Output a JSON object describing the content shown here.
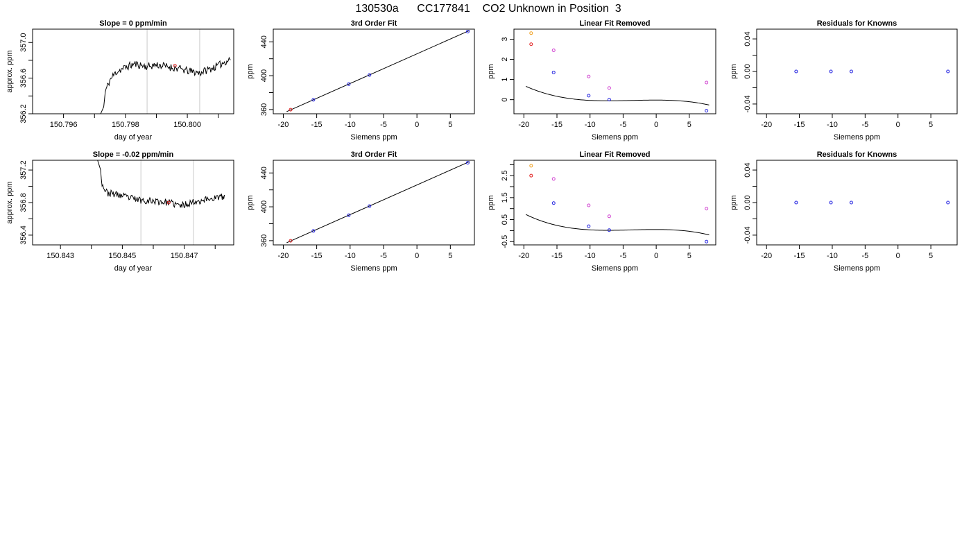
{
  "figure": {
    "title": "130530a      CC177841    CO2 Unknown in Position  3"
  },
  "chart_data": [
    {
      "id": "r1-time",
      "type": "line",
      "title": "Slope =  0  ppm/min",
      "xlabel": "day of year",
      "ylabel": "approx. ppm",
      "xlim": [
        150.795,
        150.8015
      ],
      "ylim": [
        356.2,
        357.15
      ],
      "xticks": [
        150.796,
        150.798,
        150.8
      ],
      "xtick_labels": [
        "150.796",
        "150.798",
        "150.800"
      ],
      "xminor": [
        150.797,
        150.799,
        150.801
      ],
      "yticks": [
        356.2,
        356.6,
        357.0
      ],
      "ytick_labels": [
        "356.2",
        "356.6",
        "357.0"
      ],
      "yminor": [
        356.4,
        356.8
      ],
      "vlines": [
        150.7987,
        150.8004
      ],
      "marker": {
        "x": 150.7996,
        "y": 356.74,
        "color": "#e02020"
      },
      "trace": {
        "start": 150.7972,
        "end": 150.8014,
        "seed": 11,
        "anchors": [
          [
            150.7972,
            356.2
          ],
          [
            150.7973,
            356.28
          ],
          [
            150.79735,
            356.45
          ],
          [
            150.7975,
            356.58
          ],
          [
            150.7977,
            356.67
          ],
          [
            150.798,
            356.72
          ],
          [
            150.7983,
            356.76
          ],
          [
            150.7987,
            356.73
          ],
          [
            150.799,
            356.75
          ],
          [
            150.7995,
            356.72
          ],
          [
            150.7998,
            356.7
          ],
          [
            150.8,
            356.68
          ],
          [
            150.8004,
            356.66
          ],
          [
            150.8007,
            356.7
          ],
          [
            150.801,
            356.74
          ],
          [
            150.8014,
            356.82
          ]
        ]
      }
    },
    {
      "id": "r1-fit",
      "type": "scatter",
      "title": "3rd Order Fit",
      "xlabel": "Siemens ppm",
      "ylabel": "ppm",
      "xlim": [
        -21.5,
        8.6
      ],
      "ylim": [
        355,
        455
      ],
      "xticks": [
        -20,
        -15,
        -10,
        -5,
        0,
        5
      ],
      "xtick_labels": [
        "-20",
        "-15",
        "-10",
        "-5",
        "0",
        "5"
      ],
      "yticks": [
        360,
        400,
        440
      ],
      "ytick_labels": [
        "360",
        "400",
        "440"
      ],
      "yminor": [
        380,
        420
      ],
      "fit_line": [
        [
          -19.5,
          357.5
        ],
        [
          7.9,
          453.5
        ]
      ],
      "points": [
        {
          "x": -18.9,
          "y": 359.8,
          "color": "#e02020"
        },
        {
          "x": -15.5,
          "y": 371.5,
          "color": "#2020e0"
        },
        {
          "x": -10.2,
          "y": 390.0,
          "color": "#2020e0"
        },
        {
          "x": -7.1,
          "y": 400.8,
          "color": "#2020e0"
        },
        {
          "x": 7.6,
          "y": 452.0,
          "color": "#2020e0"
        }
      ]
    },
    {
      "id": "r1-lin",
      "type": "scatter",
      "title": "Linear Fit Removed",
      "xlabel": "Siemens ppm",
      "ylabel": "ppm",
      "xlim": [
        -21.5,
        9.0
      ],
      "ylim": [
        -0.7,
        3.5
      ],
      "xticks": [
        -20,
        -15,
        -10,
        -5,
        0,
        5
      ],
      "xtick_labels": [
        "-20",
        "-15",
        "-10",
        "-5",
        "0",
        "5"
      ],
      "yticks": [
        0,
        1,
        2,
        3
      ],
      "ytick_labels": [
        "0",
        "1",
        "2",
        "3"
      ],
      "curve": {
        "coef": [
          -0.0002,
          -0.0022,
          -0.0004,
          0.0
        ],
        "x0": 0,
        "y0": -0.02,
        "from": -19.7,
        "to": 8.0
      },
      "points": [
        {
          "x": -18.9,
          "y": 3.3,
          "color": "#f0a020"
        },
        {
          "x": -18.9,
          "y": 2.75,
          "color": "#e02020"
        },
        {
          "x": -15.5,
          "y": 2.45,
          "color": "#d040d0"
        },
        {
          "x": -15.5,
          "y": 1.35,
          "color": "#2020e0"
        },
        {
          "x": -10.2,
          "y": 1.15,
          "color": "#d040d0"
        },
        {
          "x": -10.2,
          "y": 0.2,
          "color": "#2020e0"
        },
        {
          "x": -7.1,
          "y": 0.58,
          "color": "#d040d0"
        },
        {
          "x": -7.1,
          "y": 0.0,
          "color": "#2020e0"
        },
        {
          "x": 7.6,
          "y": 0.85,
          "color": "#d040d0"
        },
        {
          "x": 7.6,
          "y": -0.55,
          "color": "#2020e0"
        }
      ]
    },
    {
      "id": "r1-res",
      "type": "scatter",
      "title": "Residuals for Knowns",
      "xlabel": "Siemens ppm",
      "ylabel": "ppm",
      "xlim": [
        -21.5,
        9.0
      ],
      "ylim": [
        -0.052,
        0.052
      ],
      "xticks": [
        -20,
        -15,
        -10,
        -5,
        0,
        5
      ],
      "xtick_labels": [
        "-20",
        "-15",
        "-10",
        "-5",
        "0",
        "5"
      ],
      "yticks": [
        -0.04,
        0.0,
        0.04
      ],
      "ytick_labels": [
        "-0.04",
        "0.00",
        "0.04"
      ],
      "yminor": [
        -0.02,
        0.02
      ],
      "points": [
        {
          "x": -15.5,
          "y": 0,
          "color": "#2020e0"
        },
        {
          "x": -10.2,
          "y": 0,
          "color": "#2020e0"
        },
        {
          "x": -7.1,
          "y": 0,
          "color": "#2020e0"
        },
        {
          "x": 7.6,
          "y": 0,
          "color": "#2020e0"
        }
      ]
    },
    {
      "id": "r2-time",
      "type": "line",
      "title": "Slope =  -0.02  ppm/min",
      "xlabel": "day of year",
      "ylabel": "approx. ppm",
      "xlim": [
        150.8421,
        150.8486
      ],
      "ylim": [
        356.28,
        357.32
      ],
      "xticks": [
        150.843,
        150.845,
        150.847
      ],
      "xtick_labels": [
        "150.843",
        "150.845",
        "150.847"
      ],
      "xminor": [
        150.844,
        150.846,
        150.848
      ],
      "yticks": [
        356.4,
        356.8,
        357.2
      ],
      "ytick_labels": [
        "356.4",
        "356.8",
        "357.2"
      ],
      "yminor": [
        356.6,
        357.0
      ],
      "vlines": [
        150.8456,
        150.8473
      ],
      "marker": {
        "x": 150.8465,
        "y": 356.8,
        "color": "#e02020"
      },
      "trace": {
        "start": 150.8442,
        "end": 150.8483,
        "seed": 23,
        "anchors": [
          [
            150.8442,
            357.32
          ],
          [
            150.8443,
            357.2
          ],
          [
            150.84435,
            357.02
          ],
          [
            150.8445,
            356.92
          ],
          [
            150.8448,
            356.9
          ],
          [
            150.8452,
            356.86
          ],
          [
            150.8456,
            356.83
          ],
          [
            150.846,
            356.82
          ],
          [
            150.8465,
            356.8
          ],
          [
            150.8469,
            356.76
          ],
          [
            150.8472,
            356.8
          ],
          [
            150.8476,
            356.83
          ],
          [
            150.848,
            356.86
          ],
          [
            150.8483,
            356.87
          ]
        ]
      }
    },
    {
      "id": "r2-fit",
      "type": "scatter",
      "title": "3rd Order Fit",
      "xlabel": "Siemens ppm",
      "ylabel": "ppm",
      "xlim": [
        -21.5,
        8.6
      ],
      "ylim": [
        355,
        455
      ],
      "xticks": [
        -20,
        -15,
        -10,
        -5,
        0,
        5
      ],
      "xtick_labels": [
        "-20",
        "-15",
        "-10",
        "-5",
        "0",
        "5"
      ],
      "yticks": [
        360,
        400,
        440
      ],
      "ytick_labels": [
        "360",
        "400",
        "440"
      ],
      "yminor": [
        380,
        420
      ],
      "fit_line": [
        [
          -19.5,
          357.5
        ],
        [
          7.9,
          453.5
        ]
      ],
      "points": [
        {
          "x": -18.9,
          "y": 359.8,
          "color": "#e02020"
        },
        {
          "x": -15.5,
          "y": 371.5,
          "color": "#2020e0"
        },
        {
          "x": -10.2,
          "y": 390.0,
          "color": "#2020e0"
        },
        {
          "x": -7.1,
          "y": 400.8,
          "color": "#2020e0"
        },
        {
          "x": 7.6,
          "y": 452.0,
          "color": "#2020e0"
        }
      ]
    },
    {
      "id": "r2-lin",
      "type": "scatter",
      "title": "Linear Fit Removed",
      "xlabel": "Siemens ppm",
      "ylabel": "ppm",
      "xlim": [
        -21.5,
        9.0
      ],
      "ylim": [
        -0.65,
        3.2
      ],
      "xticks": [
        -20,
        -15,
        -10,
        -5,
        0,
        5
      ],
      "xtick_labels": [
        "-20",
        "-15",
        "-10",
        "-5",
        "0",
        "5"
      ],
      "yticks": [
        -0.5,
        0.5,
        1.5,
        2.5
      ],
      "ytick_labels": [
        "-0.5",
        "0.5",
        "1.5",
        "2.5"
      ],
      "yminor": [
        0.0,
        1.0,
        2.0,
        3.0
      ],
      "curve": {
        "coef": [
          -0.0002,
          -0.0022,
          -0.0004,
          0.0
        ],
        "x0": 0,
        "y0": 0.05,
        "from": -19.7,
        "to": 8.0
      },
      "points": [
        {
          "x": -18.9,
          "y": 2.95,
          "color": "#f0a020"
        },
        {
          "x": -18.9,
          "y": 2.5,
          "color": "#e02020"
        },
        {
          "x": -15.5,
          "y": 2.35,
          "color": "#d040d0"
        },
        {
          "x": -15.5,
          "y": 1.25,
          "color": "#2020e0"
        },
        {
          "x": -10.2,
          "y": 1.15,
          "color": "#d040d0"
        },
        {
          "x": -10.2,
          "y": 0.2,
          "color": "#2020e0"
        },
        {
          "x": -7.1,
          "y": 0.65,
          "color": "#d040d0"
        },
        {
          "x": -7.1,
          "y": 0.02,
          "color": "#2020e0"
        },
        {
          "x": 7.6,
          "y": 1.0,
          "color": "#d040d0"
        },
        {
          "x": 7.6,
          "y": -0.5,
          "color": "#2020e0"
        }
      ]
    },
    {
      "id": "r2-res",
      "type": "scatter",
      "title": "Residuals for Knowns",
      "xlabel": "Siemens ppm",
      "ylabel": "ppm",
      "xlim": [
        -21.5,
        9.0
      ],
      "ylim": [
        -0.052,
        0.052
      ],
      "xticks": [
        -20,
        -15,
        -10,
        -5,
        0,
        5
      ],
      "xtick_labels": [
        "-20",
        "-15",
        "-10",
        "-5",
        "0",
        "5"
      ],
      "yticks": [
        -0.04,
        0.0,
        0.04
      ],
      "ytick_labels": [
        "-0.04",
        "0.00",
        "0.04"
      ],
      "yminor": [
        -0.02,
        0.02
      ],
      "points": [
        {
          "x": -15.5,
          "y": 0,
          "color": "#2020e0"
        },
        {
          "x": -10.2,
          "y": 0,
          "color": "#2020e0"
        },
        {
          "x": -7.1,
          "y": 0,
          "color": "#2020e0"
        },
        {
          "x": 7.6,
          "y": 0,
          "color": "#2020e0"
        }
      ]
    }
  ]
}
